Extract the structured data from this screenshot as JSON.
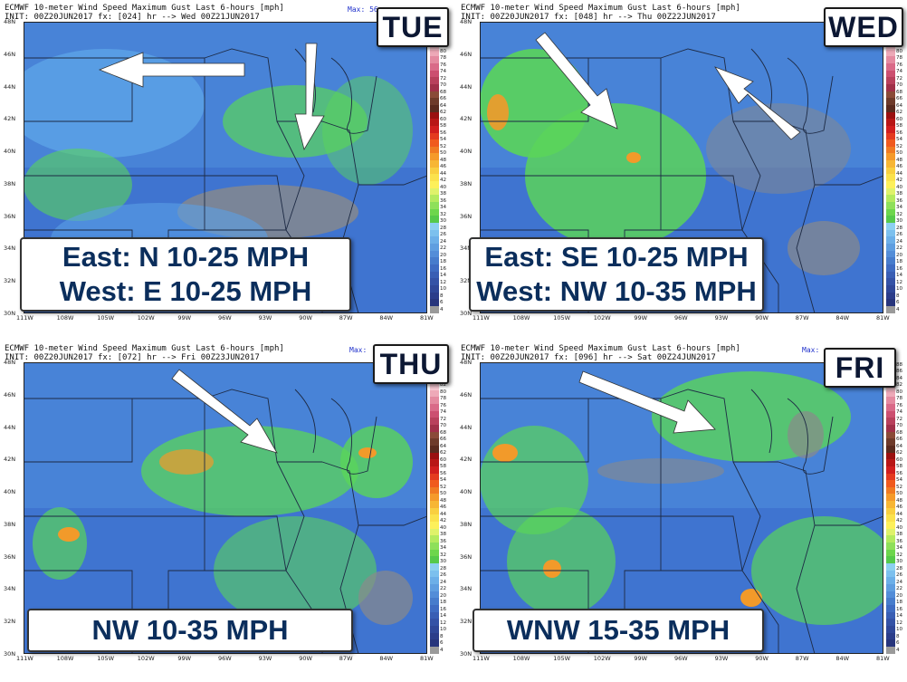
{
  "panels": [
    {
      "id": "tue",
      "title_line": "ECMWF 10-meter Wind Speed Maximum Gust Last 6-hours [mph]",
      "init_line": "INIT: 00Z20JUN2017 fx: [024] hr --> Wed 00Z21JUN2017",
      "max_label": "Max: 56",
      "day": "TUE",
      "caption_lines": [
        "East: N 10-25 MPH",
        "West: E 10-25 MPH"
      ]
    },
    {
      "id": "wed",
      "title_line": "ECMWF 10-meter Wind Speed Maximum Gust Last 6-hours [mph]",
      "init_line": "INIT: 00Z20JUN2017 fx: [048] hr --> Thu 00Z22JUN2017",
      "max_label": "",
      "day": "WED",
      "caption_lines": [
        "East: SE 10-25 MPH",
        "West: NW 10-35 MPH"
      ]
    },
    {
      "id": "thu",
      "title_line": "ECMWF 10-meter Wind Speed Maximum Gust Last 6-hours [mph]",
      "init_line": "INIT: 00Z20JUN2017 fx: [072] hr --> Fri 00Z23JUN2017",
      "max_label": "Max:",
      "day": "THU",
      "caption_lines": [
        "NW 10-35 MPH"
      ]
    },
    {
      "id": "fri",
      "title_line": "ECMWF 10-meter Wind Speed Maximum Gust Last 6-hours [mph]",
      "init_line": "INIT: 00Z20JUN2017 fx: [096] hr --> Sat 00Z24JUN2017",
      "max_label": "Max:",
      "day": "FRI",
      "caption_lines": [
        "WNW 15-35 MPH"
      ]
    }
  ],
  "lat_labels": [
    "48N",
    "46N",
    "44N",
    "42N",
    "40N",
    "38N",
    "36N",
    "34N",
    "32N",
    "30N"
  ],
  "lon_labels": [
    "111W",
    "108W",
    "105W",
    "102W",
    "99W",
    "96W",
    "93W",
    "90W",
    "87W",
    "84W",
    "81W"
  ],
  "colorbar_labels": [
    "88",
    "86",
    "84",
    "82",
    "80",
    "78",
    "76",
    "74",
    "72",
    "70",
    "68",
    "66",
    "64",
    "62",
    "60",
    "58",
    "56",
    "54",
    "52",
    "50",
    "48",
    "46",
    "44",
    "42",
    "40",
    "38",
    "36",
    "34",
    "32",
    "30",
    "28",
    "26",
    "24",
    "22",
    "20",
    "18",
    "16",
    "14",
    "12",
    "10",
    "8",
    "6",
    "4"
  ],
  "colorbar_colors": [
    "#f2f2f2",
    "#e4e4e4",
    "#d2d2d2",
    "#f7c8d2",
    "#eea9b8",
    "#e48aa0",
    "#d96a88",
    "#cc4f70",
    "#b8405c",
    "#a03049",
    "#8a4a38",
    "#6e3a2a",
    "#5a2a1e",
    "#9a1010",
    "#b81616",
    "#d11e1e",
    "#e43a20",
    "#f05a1e",
    "#f07a22",
    "#f59a2a",
    "#f7b634",
    "#f9cf40",
    "#fbe24c",
    "#fdf05a",
    "#dff26a",
    "#b4ea5e",
    "#8ee05a",
    "#6dd64c",
    "#55c94a",
    "#8cd0f0",
    "#7cc0ee",
    "#6cafe8",
    "#5f9ee0",
    "#538dd8",
    "#477ccc",
    "#3f6cc2",
    "#395eb4",
    "#3452a6",
    "#2f4798",
    "#2b3d8a",
    "#27357c",
    "#9a9a9a"
  ],
  "colors": {
    "caption_text": "#0b2e5c",
    "day_text": "#0c1733",
    "arrow": "#ffffff",
    "field_low": "#3f74d0",
    "field_mid": "#5aa0e6",
    "field_high": "#5ad45a",
    "gust_orange": "#f29a2a",
    "terrain_gray": "#8a8a8a"
  }
}
